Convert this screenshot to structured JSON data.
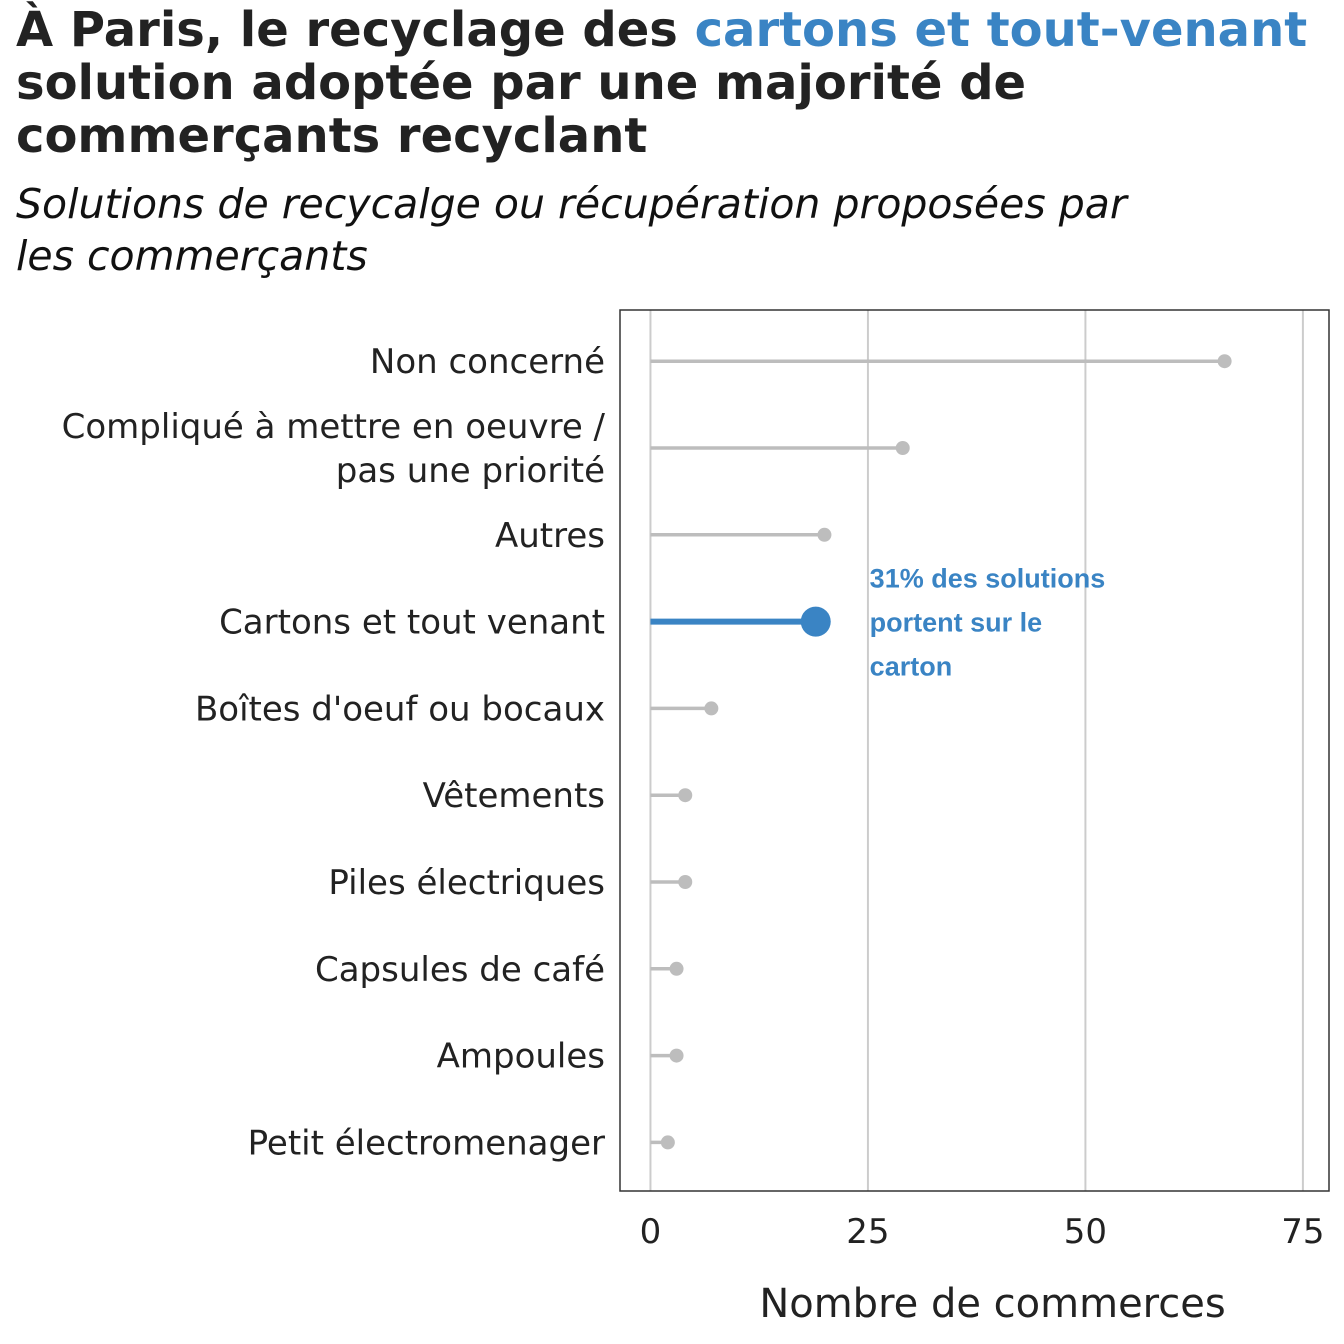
{
  "header": {
    "title_part1": "À Paris, le recyclage des ",
    "title_highlight": "cartons et tout-venant",
    "title_part2": " solution adoptée par une majorité de commerçants recyclant",
    "subtitle": "Solutions de recycalge ou récupération proposées par les commerçants"
  },
  "colors": {
    "highlight": "#3a84c4",
    "muted": "#bdbdbd",
    "grid": "#cccccc",
    "text": "#222222"
  },
  "chart_data": {
    "type": "lollipop",
    "categories": [
      [
        "Non concerné"
      ],
      [
        "Compliqué à mettre en oeuvre /",
        "pas une priorité"
      ],
      [
        "Autres"
      ],
      [
        "Cartons et tout venant"
      ],
      [
        "Boîtes d'oeuf ou bocaux"
      ],
      [
        "Vêtements"
      ],
      [
        "Piles électriques"
      ],
      [
        "Capsules de café"
      ],
      [
        "Ampoules"
      ],
      [
        "Petit électromenager"
      ]
    ],
    "values": [
      66,
      29,
      20,
      19,
      7,
      4,
      4,
      3,
      3,
      2
    ],
    "highlight_index": 3,
    "xlabel": "Nombre de commerces",
    "ylabel": "",
    "xlim": [
      -3.5,
      78
    ],
    "xticks": [
      0,
      25,
      50,
      75
    ],
    "grid": true,
    "annotation": {
      "lines": [
        "31% des solutions",
        "portent sur le",
        "carton"
      ],
      "x": 25.2,
      "category_index": 3
    }
  }
}
